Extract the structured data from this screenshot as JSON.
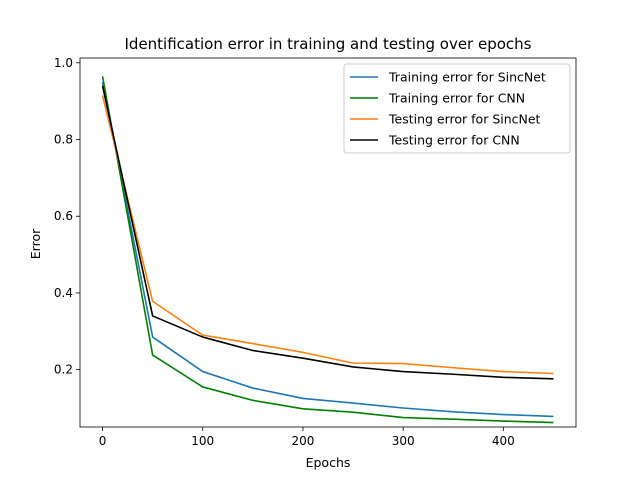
{
  "chart_data": {
    "type": "line",
    "title": "Identification error in training and testing over epochs",
    "xlabel": "Epochs",
    "ylabel": "Error",
    "xlim": [
      -22.5,
      472.5
    ],
    "ylim": [
      0.0505,
      1.0125
    ],
    "xticks": [
      0,
      100,
      200,
      300,
      400
    ],
    "xtick_labels": [
      "0",
      "100",
      "200",
      "300",
      "400"
    ],
    "yticks": [
      0.2,
      0.4,
      0.6,
      0.8,
      1.0
    ],
    "ytick_labels": [
      "0.2",
      "0.4",
      "0.6",
      "0.8",
      "1.0"
    ],
    "grid": false,
    "legend_position": "top-right",
    "x": [
      0,
      50,
      100,
      150,
      200,
      250,
      300,
      350,
      400,
      450
    ],
    "series": [
      {
        "name": "Training error for SincNet",
        "color": "#1f77b4",
        "values": [
          0.95,
          0.285,
          0.195,
          0.152,
          0.125,
          0.113,
          0.1,
          0.09,
          0.083,
          0.078
        ]
      },
      {
        "name": "Training error for CNN",
        "color": "#008000",
        "values": [
          0.965,
          0.238,
          0.155,
          0.12,
          0.098,
          0.089,
          0.075,
          0.071,
          0.066,
          0.062
        ]
      },
      {
        "name": "Testing error for SincNet",
        "color": "#ff7f0e",
        "values": [
          0.915,
          0.378,
          0.29,
          0.268,
          0.245,
          0.217,
          0.216,
          0.205,
          0.195,
          0.19
        ]
      },
      {
        "name": "Testing error for CNN",
        "color": "#000000",
        "values": [
          0.94,
          0.34,
          0.285,
          0.25,
          0.23,
          0.207,
          0.195,
          0.188,
          0.18,
          0.176
        ]
      }
    ]
  }
}
